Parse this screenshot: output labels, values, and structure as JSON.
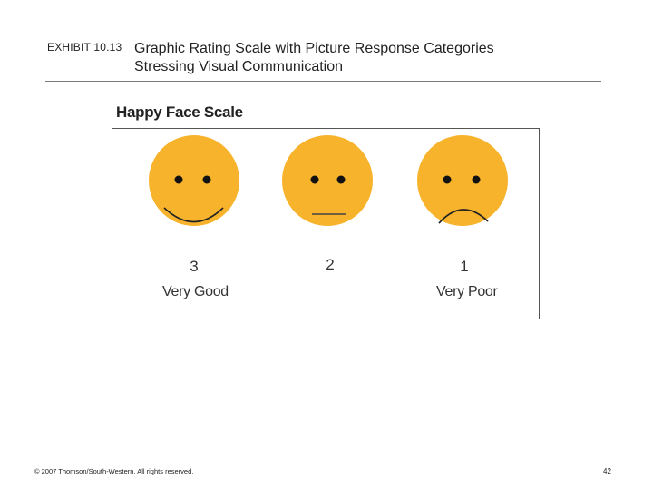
{
  "header": {
    "exhibit": "EXHIBIT 10.13",
    "title_line1": "Graphic Rating Scale with Picture Response Categories",
    "title_line2": "Stressing Visual Communication"
  },
  "figure": {
    "title": "Happy Face Scale",
    "face_color": "#F7B32B",
    "faces": [
      {
        "value": "3",
        "label": "Very Good",
        "expression": "smile-icon"
      },
      {
        "value": "2",
        "label": "",
        "expression": "neutral-icon"
      },
      {
        "value": "1",
        "label": "Very Poor",
        "expression": "frown-icon"
      }
    ]
  },
  "footer": {
    "copyright": "© 2007 Thomson/South-Western. All rights reserved.",
    "page_number": "42"
  }
}
